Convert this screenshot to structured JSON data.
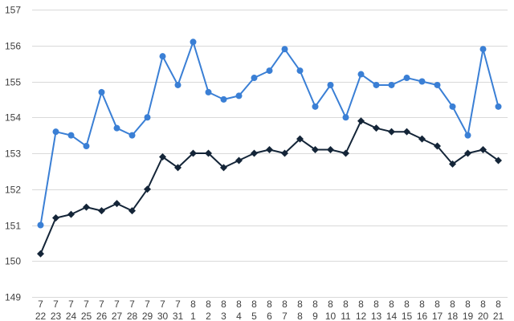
{
  "chart_data": {
    "type": "line",
    "title": "",
    "xlabel": "",
    "ylabel": "",
    "ylim": [
      149,
      157
    ],
    "yticks": [
      149,
      150,
      151,
      152,
      153,
      154,
      155,
      156,
      157
    ],
    "grid": true,
    "legend": "none",
    "categories": [
      {
        "month": "7",
        "day": "22"
      },
      {
        "month": "7",
        "day": "23"
      },
      {
        "month": "7",
        "day": "24"
      },
      {
        "month": "7",
        "day": "25"
      },
      {
        "month": "7",
        "day": "26"
      },
      {
        "month": "7",
        "day": "27"
      },
      {
        "month": "7",
        "day": "28"
      },
      {
        "month": "7",
        "day": "29"
      },
      {
        "month": "7",
        "day": "30"
      },
      {
        "month": "7",
        "day": "31"
      },
      {
        "month": "8",
        "day": "1"
      },
      {
        "month": "8",
        "day": "2"
      },
      {
        "month": "8",
        "day": "3"
      },
      {
        "month": "8",
        "day": "4"
      },
      {
        "month": "8",
        "day": "5"
      },
      {
        "month": "8",
        "day": "6"
      },
      {
        "month": "8",
        "day": "7"
      },
      {
        "month": "8",
        "day": "8"
      },
      {
        "month": "8",
        "day": "9"
      },
      {
        "month": "8",
        "day": "10"
      },
      {
        "month": "8",
        "day": "11"
      },
      {
        "month": "8",
        "day": "12"
      },
      {
        "month": "8",
        "day": "13"
      },
      {
        "month": "8",
        "day": "14"
      },
      {
        "month": "8",
        "day": "15"
      },
      {
        "month": "8",
        "day": "16"
      },
      {
        "month": "8",
        "day": "17"
      },
      {
        "month": "8",
        "day": "18"
      },
      {
        "month": "8",
        "day": "19"
      },
      {
        "month": "8",
        "day": "20"
      },
      {
        "month": "8",
        "day": "21"
      }
    ],
    "series": [
      {
        "color": "#3a7fd5",
        "marker": "circle",
        "values": [
          151.0,
          153.6,
          153.5,
          153.2,
          154.7,
          153.7,
          153.5,
          154.0,
          155.7,
          154.9,
          156.1,
          154.7,
          154.5,
          154.6,
          155.1,
          155.3,
          155.9,
          155.3,
          154.3,
          154.9,
          154.0,
          155.2,
          154.9,
          154.9,
          155.1,
          155.0,
          154.9,
          154.3,
          153.5,
          155.9,
          154.3
        ]
      },
      {
        "color": "#142538",
        "marker": "diamond",
        "values": [
          150.2,
          151.2,
          151.3,
          151.5,
          151.4,
          151.6,
          151.4,
          152.0,
          152.9,
          152.6,
          153.0,
          153.0,
          152.6,
          152.8,
          153.0,
          153.1,
          153.0,
          153.4,
          153.1,
          153.1,
          153.0,
          153.9,
          153.7,
          153.6,
          153.6,
          153.4,
          153.2,
          152.7,
          153.0,
          153.1,
          152.8
        ]
      }
    ],
    "colors": {
      "grid": "#d9d9d9",
      "axis_text": "#404040"
    }
  }
}
